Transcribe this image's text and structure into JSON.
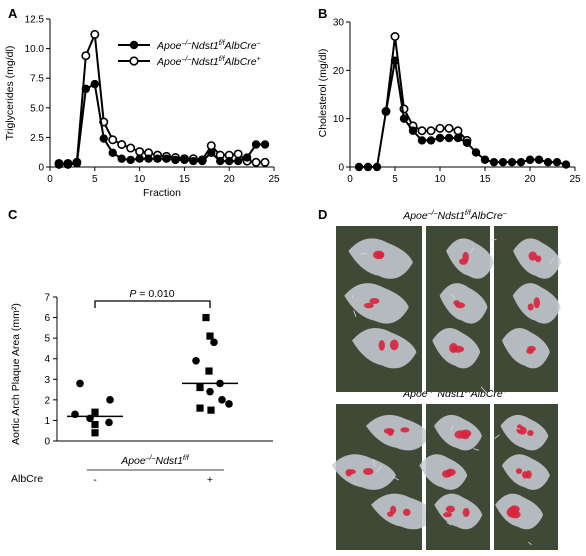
{
  "panels": {
    "A": {
      "letter": "A"
    },
    "B": {
      "letter": "B"
    },
    "C": {
      "letter": "C"
    },
    "D": {
      "letter": "D"
    }
  },
  "chart_data": [
    {
      "panel": "A",
      "type": "line",
      "xlabel": "Fraction",
      "ylabel": "Triglycerides (mg/dl)",
      "xlim": [
        0,
        25
      ],
      "ylim": [
        0,
        12.5
      ],
      "xticks": [
        0,
        5,
        10,
        15,
        20,
        25
      ],
      "yticks": [
        0,
        2.5,
        5.0,
        7.5,
        10.0,
        12.5
      ],
      "ytick_labels": [
        "0",
        "2.5",
        "5.0",
        "7.5",
        "10.0",
        "12.5"
      ],
      "legend_position": "top-right",
      "series": [
        {
          "name": "Apoe−/−Ndst1f/fAlbCre−",
          "name_parts": {
            "base": "Apoe",
            "sup1": "–/–",
            "mid": "Ndst1",
            "sup2": "f/f",
            "tail": "AlbCre",
            "sup3": "–"
          },
          "marker": "filled",
          "x": [
            1,
            2,
            3,
            4,
            5,
            6,
            7,
            8,
            9,
            10,
            11,
            12,
            13,
            14,
            15,
            16,
            17,
            18,
            19,
            20,
            21,
            22,
            23,
            24
          ],
          "y": [
            0.2,
            0.2,
            0.3,
            6.6,
            7.0,
            2.4,
            1.2,
            0.7,
            0.6,
            0.7,
            0.7,
            0.7,
            0.7,
            0.6,
            0.6,
            0.5,
            0.5,
            1.2,
            0.5,
            0.5,
            0.5,
            0.8,
            1.9,
            1.9
          ]
        },
        {
          "name": "Apoe−/−Ndst1f/fAlbCre+",
          "name_parts": {
            "base": "Apoe",
            "sup1": "–/–",
            "mid": "Ndst1",
            "sup2": "f/f",
            "tail": "AlbCre",
            "sup3": "+"
          },
          "marker": "open",
          "x": [
            1,
            2,
            3,
            4,
            5,
            6,
            7,
            8,
            9,
            10,
            11,
            12,
            13,
            14,
            15,
            16,
            17,
            18,
            19,
            20,
            21,
            22,
            23,
            24
          ],
          "y": [
            0.3,
            0.3,
            0.4,
            9.4,
            11.2,
            3.8,
            2.3,
            1.9,
            1.6,
            1.3,
            1.2,
            1.0,
            0.9,
            0.8,
            0.7,
            0.7,
            0.6,
            1.8,
            1.0,
            1.0,
            1.1,
            0.5,
            0.4,
            0.4
          ]
        }
      ]
    },
    {
      "panel": "B",
      "type": "line",
      "xlabel": "",
      "ylabel": "Cholesterol (mg/dl)",
      "xlim": [
        0,
        25
      ],
      "ylim": [
        0,
        30
      ],
      "xticks": [
        0,
        5,
        10,
        15,
        20,
        25
      ],
      "yticks": [
        0,
        10,
        20,
        30
      ],
      "series": [
        {
          "name": "",
          "marker": "filled",
          "x": [
            1,
            2,
            3,
            4,
            5,
            6,
            7,
            8,
            9,
            10,
            11,
            12,
            13,
            14,
            15,
            16,
            17,
            18,
            19,
            20,
            21,
            22,
            23,
            24
          ],
          "y": [
            0,
            0,
            0,
            11.5,
            22.0,
            10.0,
            7.5,
            5.5,
            5.5,
            6.0,
            6.0,
            6.0,
            5.0,
            3.0,
            1.5,
            1.0,
            1.0,
            1.0,
            1.0,
            1.5,
            1.5,
            1.0,
            1.0,
            0.5
          ]
        },
        {
          "name": "",
          "marker": "open",
          "x": [
            4,
            5,
            6,
            7,
            8,
            9,
            10,
            11,
            12,
            13
          ],
          "y": [
            11.5,
            27.0,
            12.0,
            8.5,
            7.5,
            7.5,
            8.0,
            8.0,
            7.5,
            5.5
          ]
        }
      ]
    },
    {
      "panel": "C",
      "type": "scatter",
      "ylabel": "Aortic Arch Plaque Area (mm²)",
      "ylim": [
        0,
        7
      ],
      "yticks": [
        0,
        1,
        2,
        3,
        4,
        5,
        6,
        7
      ],
      "xlabel_parts": {
        "base": "Apoe",
        "sup1": "–/–",
        "mid": "Ndst1",
        "sup2": "f/f"
      },
      "group_row_label": "AlbCre",
      "groups": [
        {
          "category": "-",
          "median": 1.2,
          "points": [
            {
              "y": 2.8,
              "marker": "circle"
            },
            {
              "y": 2.0,
              "marker": "circle"
            },
            {
              "y": 1.4,
              "marker": "square"
            },
            {
              "y": 1.3,
              "marker": "circle"
            },
            {
              "y": 1.1,
              "marker": "circle"
            },
            {
              "y": 0.9,
              "marker": "circle"
            },
            {
              "y": 0.8,
              "marker": "square"
            },
            {
              "y": 0.4,
              "marker": "square"
            }
          ]
        },
        {
          "category": "+",
          "median": 2.8,
          "points": [
            {
              "y": 6.0,
              "marker": "square"
            },
            {
              "y": 5.1,
              "marker": "square"
            },
            {
              "y": 4.8,
              "marker": "circle"
            },
            {
              "y": 3.9,
              "marker": "circle"
            },
            {
              "y": 3.4,
              "marker": "square"
            },
            {
              "y": 2.8,
              "marker": "circle"
            },
            {
              "y": 2.6,
              "marker": "square"
            },
            {
              "y": 2.4,
              "marker": "circle"
            },
            {
              "y": 2.0,
              "marker": "circle"
            },
            {
              "y": 1.8,
              "marker": "circle"
            },
            {
              "y": 1.6,
              "marker": "square"
            },
            {
              "y": 1.5,
              "marker": "square"
            }
          ]
        }
      ],
      "significance": {
        "prefix": "P",
        "text": " = 0.010"
      }
    }
  ],
  "panel_D": {
    "top_caption": {
      "base": "Apoe",
      "sup1": "–/–",
      "mid": "Ndst1",
      "sup2": "f/f",
      "tail": "AlbCre",
      "sup3": "–"
    },
    "bottom_caption": {
      "base": "Apoe",
      "sup1": "–/–",
      "mid": "Ndst1",
      "sup2": "f/f",
      "tail": "AlbCre",
      "sup3": "+"
    },
    "colors": {
      "background": "#3e4a35",
      "tissue": "#c9ced6",
      "stain": "#d8243c"
    }
  }
}
